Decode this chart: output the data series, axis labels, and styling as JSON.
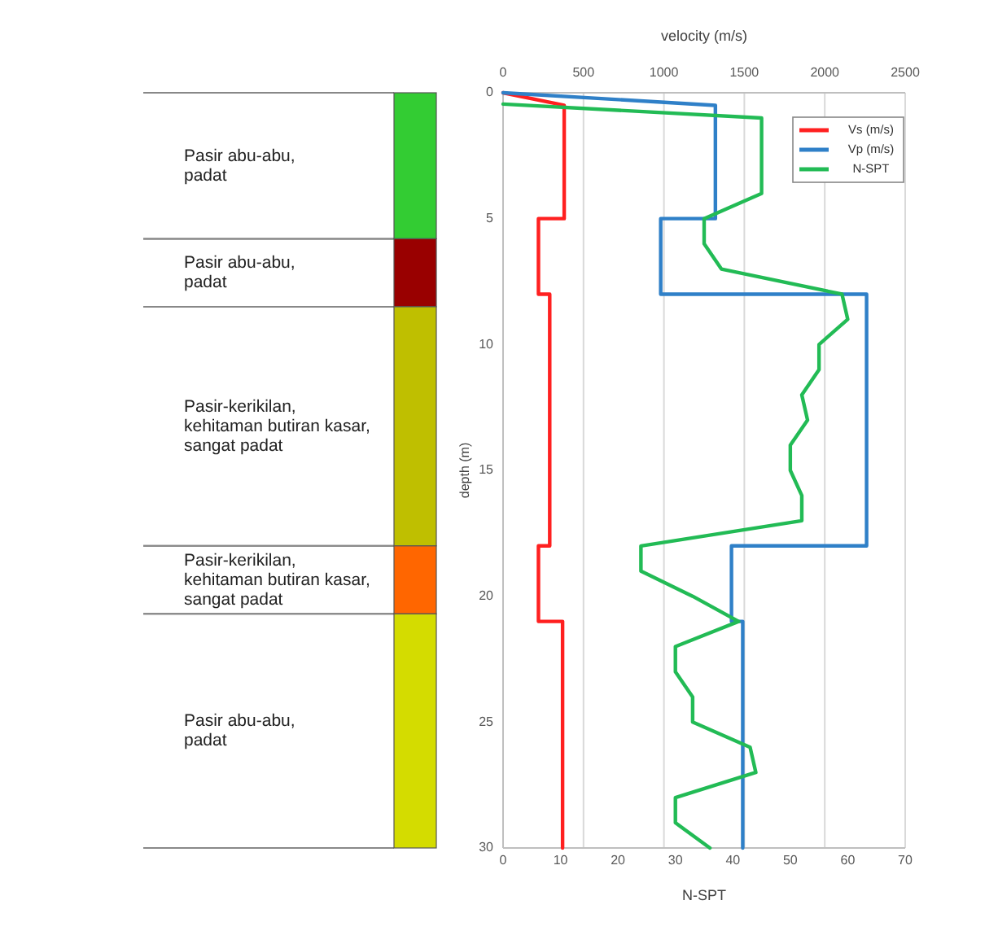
{
  "chart_data": [
    {
      "type": "bar",
      "stacked": true,
      "categories": [
        null
      ],
      "ylim": [
        30,
        0
      ],
      "series": [
        {
          "color": "#33cc33",
          "values": [
            5.8
          ]
        },
        {
          "color": "#990000",
          "values": [
            2.7
          ]
        },
        {
          "color": "#bfbf00",
          "values": [
            9.5
          ]
        },
        {
          "color": "#ff6600",
          "values": [
            2.7
          ]
        },
        {
          "color": "#d4dc00",
          "values": [
            9.3
          ]
        }
      ],
      "annotations": [
        "Pasir abu-abu,\npadat",
        "Pasir abu-abu,\npadat",
        "Pasir-kerikilan,\nkehitaman butiran kasar,\nsangat padat",
        "Pasir-kerikilan,\nkehitaman butiran kasar,\nsangat padat",
        "Pasir abu-abu,\npadat"
      ]
    },
    {
      "type": "line",
      "xlabel": "N-SPT",
      "x2label": "velocity (m/s)",
      "ylabel": "depth (m)",
      "xlim": [
        0,
        70
      ],
      "xticks": [
        0,
        10,
        20,
        30,
        40,
        50,
        60,
        70
      ],
      "x2lim": [
        0,
        2500
      ],
      "x2ticks": [
        0,
        500,
        1000,
        1500,
        2000,
        2500
      ],
      "ylim": [
        30,
        0
      ],
      "yticks": [
        0,
        5,
        10,
        15,
        20,
        25,
        30
      ],
      "grid": "x",
      "legend": "top right",
      "series": [
        {
          "name": "Vs (m/s)",
          "color": "#ff2020",
          "axis": "x2",
          "x": [
            0,
            380,
            380,
            220,
            220,
            290,
            290,
            220,
            220,
            370,
            370
          ],
          "values": [
            0,
            0.5,
            5,
            5,
            8,
            8,
            18,
            18,
            21,
            21,
            30
          ]
        },
        {
          "name": "Vp (m/s)",
          "color": "#2f80c8",
          "axis": "x2",
          "x": [
            0,
            1320,
            1320,
            980,
            980,
            2260,
            2260,
            1420,
            1420,
            1490,
            1490
          ],
          "values": [
            0,
            0.5,
            5,
            5,
            8,
            8,
            18,
            18,
            21,
            21,
            30
          ]
        },
        {
          "name": "N-SPT",
          "color": "#22bb55",
          "x": [
            0,
            45,
            45,
            35,
            35,
            38,
            59,
            60,
            55,
            55,
            52,
            53,
            50,
            50,
            52,
            52,
            24,
            24,
            33,
            41,
            30,
            30,
            33,
            33,
            43,
            44,
            30,
            30,
            36
          ],
          "values": [
            0.45,
            1,
            4,
            5,
            6,
            7,
            8,
            9,
            10,
            11,
            12,
            13,
            14,
            15,
            16,
            17,
            18,
            19,
            20,
            21,
            22,
            23,
            24,
            25,
            26,
            27,
            28,
            29,
            30
          ]
        }
      ]
    }
  ]
}
